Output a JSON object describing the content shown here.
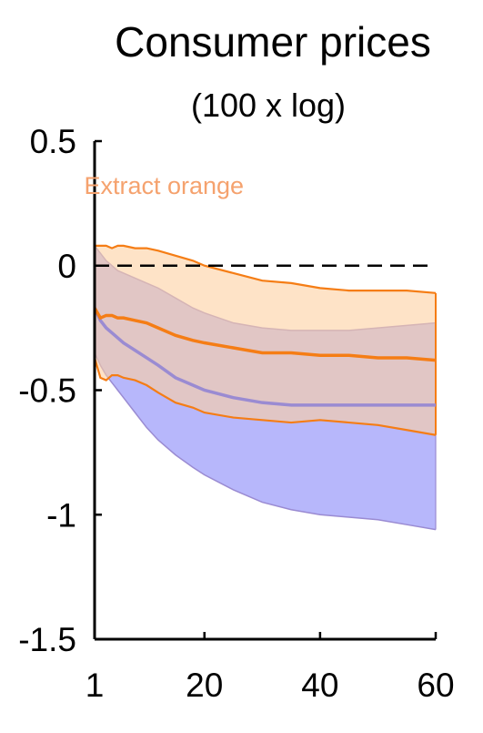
{
  "chart_data": {
    "type": "area",
    "title": "Consumer prices",
    "subtitle": "(100 x log)",
    "annotation": "Extract orange",
    "xlim": [
      1,
      60
    ],
    "ylim": [
      -1.5,
      0.5
    ],
    "xticks": [
      1,
      20,
      40,
      60
    ],
    "xtick_labels": [
      "1",
      "20",
      "40",
      "60"
    ],
    "yticks": [
      0.5,
      0,
      -0.5,
      -1,
      -1.5
    ],
    "ytick_labels": [
      "0.5",
      "0",
      "-0.5",
      "-1",
      "-1.5"
    ],
    "zero_line": {
      "y": 0,
      "style": "dashed",
      "color": "#000000"
    },
    "x": [
      1,
      2,
      3,
      4,
      5,
      6,
      8,
      10,
      12,
      15,
      18,
      20,
      25,
      30,
      35,
      40,
      45,
      50,
      55,
      60
    ],
    "series": [
      {
        "color_fill": "#b7b7fb",
        "color_line": "#9a8bd2",
        "median": [
          -0.17,
          -0.22,
          -0.25,
          -0.27,
          -0.29,
          -0.31,
          -0.34,
          -0.37,
          -0.4,
          -0.45,
          -0.48,
          -0.5,
          -0.53,
          -0.55,
          -0.56,
          -0.56,
          -0.56,
          -0.56,
          -0.56,
          -0.56
        ],
        "upper": [
          0.08,
          0.05,
          0.02,
          0.0,
          -0.02,
          -0.03,
          -0.05,
          -0.07,
          -0.09,
          -0.13,
          -0.17,
          -0.19,
          -0.23,
          -0.25,
          -0.26,
          -0.26,
          -0.26,
          -0.25,
          -0.24,
          -0.23
        ],
        "lower": [
          -0.35,
          -0.4,
          -0.44,
          -0.47,
          -0.5,
          -0.53,
          -0.59,
          -0.65,
          -0.7,
          -0.76,
          -0.81,
          -0.84,
          -0.9,
          -0.95,
          -0.98,
          -1.0,
          -1.01,
          -1.02,
          -1.04,
          -1.06
        ]
      },
      {
        "color_fill": "#fdd0a2",
        "color_line": "#f57d15",
        "median": [
          -0.17,
          -0.21,
          -0.2,
          -0.2,
          -0.21,
          -0.21,
          -0.22,
          -0.23,
          -0.25,
          -0.28,
          -0.3,
          -0.31,
          -0.33,
          -0.35,
          -0.35,
          -0.36,
          -0.36,
          -0.37,
          -0.37,
          -0.38
        ],
        "upper": [
          0.08,
          0.08,
          0.08,
          0.07,
          0.08,
          0.08,
          0.07,
          0.07,
          0.06,
          0.04,
          0.02,
          0.0,
          -0.03,
          -0.06,
          -0.07,
          -0.09,
          -0.1,
          -0.1,
          -0.1,
          -0.11
        ],
        "lower": [
          -0.37,
          -0.45,
          -0.46,
          -0.44,
          -0.44,
          -0.45,
          -0.46,
          -0.48,
          -0.51,
          -0.55,
          -0.57,
          -0.59,
          -0.61,
          -0.62,
          -0.63,
          -0.62,
          -0.63,
          -0.64,
          -0.66,
          -0.68
        ]
      }
    ]
  }
}
